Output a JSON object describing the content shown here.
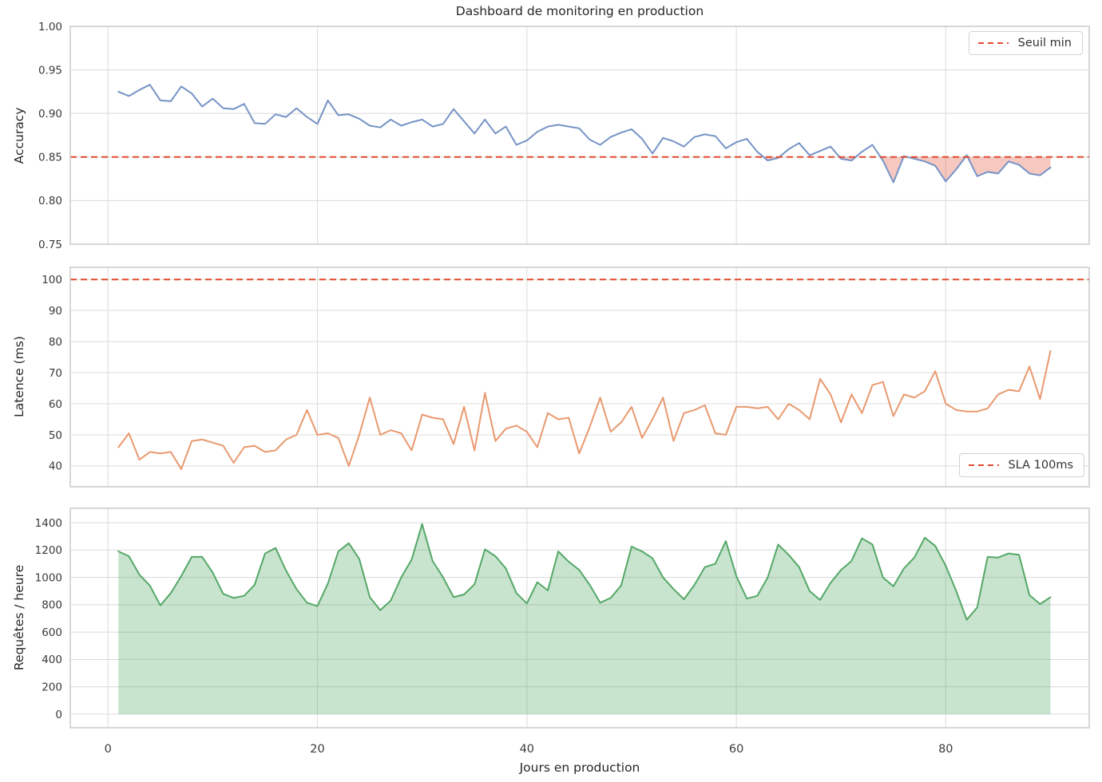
{
  "figure": {
    "title": "Dashboard de monitoring en production",
    "xlabel": "Jours en production",
    "xticks": [
      0,
      20,
      40,
      60,
      80
    ],
    "xtick_labels": [
      "0",
      "20",
      "40",
      "60",
      "80"
    ],
    "xlim": [
      -3.6,
      93.7
    ],
    "colors": {
      "accuracy_line": "#7693c6",
      "latency_line": "#e8996f",
      "requests_line": "#55a868",
      "threshold_red": "#e2492f",
      "grid": "#dddddd",
      "text": "#262626"
    }
  },
  "x_days": [
    1,
    2,
    3,
    4,
    5,
    6,
    7,
    8,
    9,
    10,
    11,
    12,
    13,
    14,
    15,
    16,
    17,
    18,
    19,
    20,
    21,
    22,
    23,
    24,
    25,
    26,
    27,
    28,
    29,
    30,
    31,
    32,
    33,
    34,
    35,
    36,
    37,
    38,
    39,
    40,
    41,
    42,
    43,
    44,
    45,
    46,
    47,
    48,
    49,
    50,
    51,
    52,
    53,
    54,
    55,
    56,
    57,
    58,
    59,
    60,
    61,
    62,
    63,
    64,
    65,
    66,
    67,
    68,
    69,
    70,
    71,
    72,
    73,
    74,
    75,
    76,
    77,
    78,
    79,
    80,
    81,
    82,
    83,
    84,
    85,
    86,
    87,
    88,
    89,
    90
  ],
  "chart_data": [
    {
      "id": "accuracy",
      "type": "line",
      "ylabel": "Accuracy",
      "ylim": [
        0.75,
        1.0
      ],
      "yticks": [
        0.75,
        0.8,
        0.85,
        0.9,
        0.95,
        1.0
      ],
      "ytick_labels": [
        "0.75",
        "0.80",
        "0.85",
        "0.90",
        "0.95",
        "1.00"
      ],
      "grid": true,
      "series": [
        {
          "name": "accuracy",
          "color": "#7693c6",
          "line_width": 2,
          "values": [
            0.925,
            0.92,
            0.927,
            0.933,
            0.915,
            0.914,
            0.931,
            0.923,
            0.908,
            0.917,
            0.906,
            0.905,
            0.911,
            0.889,
            0.888,
            0.899,
            0.896,
            0.906,
            0.896,
            0.888,
            0.915,
            0.898,
            0.899,
            0.894,
            0.886,
            0.884,
            0.893,
            0.886,
            0.89,
            0.893,
            0.885,
            0.888,
            0.905,
            0.891,
            0.877,
            0.893,
            0.877,
            0.885,
            0.864,
            0.869,
            0.879,
            0.885,
            0.887,
            0.885,
            0.883,
            0.87,
            0.864,
            0.873,
            0.878,
            0.882,
            0.871,
            0.854,
            0.872,
            0.868,
            0.862,
            0.873,
            0.876,
            0.874,
            0.86,
            0.867,
            0.871,
            0.856,
            0.846,
            0.849,
            0.859,
            0.866,
            0.852,
            0.857,
            0.862,
            0.848,
            0.846,
            0.856,
            0.864,
            0.846,
            0.821,
            0.851,
            0.848,
            0.845,
            0.84,
            0.822,
            0.836,
            0.852,
            0.828,
            0.833,
            0.831,
            0.845,
            0.841,
            0.831,
            0.829,
            0.838
          ]
        }
      ],
      "threshold": {
        "value": 0.85,
        "color": "#e2492f",
        "style": "dashed",
        "fill_below": true,
        "fill_color": "#e2492f",
        "fill_opacity": 0.3
      },
      "legend": {
        "label": "Seuil min",
        "position": "top-right"
      }
    },
    {
      "id": "latency",
      "type": "line",
      "ylabel": "Latence (ms)",
      "ylim": [
        33.3,
        103.9
      ],
      "yticks": [
        40,
        50,
        60,
        70,
        80,
        90,
        100
      ],
      "ytick_labels": [
        "40",
        "50",
        "60",
        "70",
        "80",
        "90",
        "100"
      ],
      "grid": true,
      "series": [
        {
          "name": "latence",
          "color": "#e8996f",
          "line_width": 2,
          "values": [
            46,
            50.5,
            42,
            44.5,
            44,
            44.5,
            39,
            48,
            48.5,
            47.5,
            46.5,
            41,
            46,
            46.5,
            44.5,
            45,
            48.5,
            50,
            58,
            50,
            50.5,
            49,
            40,
            50,
            62,
            50,
            51.5,
            50.5,
            45,
            56.5,
            55.5,
            55,
            47,
            59,
            45,
            63.5,
            48,
            52,
            53,
            51,
            46,
            57,
            55,
            55.5,
            44,
            52.5,
            62,
            51,
            54,
            59,
            49,
            55,
            62,
            48,
            57,
            58,
            59.5,
            50.5,
            50,
            59,
            59,
            58.5,
            59,
            55,
            60,
            58,
            55,
            68,
            63,
            54,
            63,
            57,
            66,
            67,
            56,
            63,
            62,
            64,
            70.5,
            60,
            58,
            57.5,
            57.5,
            58.5,
            63,
            64.5,
            64,
            72,
            61.5,
            77
          ]
        }
      ],
      "threshold": {
        "value": 100,
        "color": "#e2492f",
        "style": "dashed",
        "fill_below": false
      },
      "legend": {
        "label": "SLA 100ms",
        "position": "bottom-right"
      }
    },
    {
      "id": "requests",
      "type": "area",
      "ylabel": "Requêtes / heure",
      "ylim": [
        -99,
        1505
      ],
      "yticks": [
        0,
        200,
        400,
        600,
        800,
        1000,
        1200,
        1400
      ],
      "ytick_labels": [
        "0",
        "200",
        "400",
        "600",
        "800",
        "1000",
        "1200",
        "1400"
      ],
      "grid": true,
      "fill_baseline": 0,
      "series": [
        {
          "name": "requetes",
          "color": "#55a868",
          "line_width": 2,
          "fill_opacity": 0.32,
          "values": [
            1190,
            1155,
            1020,
            940,
            795,
            885,
            1010,
            1150,
            1150,
            1035,
            880,
            850,
            865,
            945,
            1175,
            1215,
            1050,
            915,
            815,
            790,
            955,
            1190,
            1250,
            1135,
            855,
            760,
            830,
            1000,
            1130,
            1390,
            1120,
            1000,
            855,
            875,
            950,
            1205,
            1155,
            1065,
            885,
            810,
            965,
            905,
            1190,
            1115,
            1055,
            945,
            815,
            850,
            940,
            1225,
            1190,
            1140,
            1000,
            915,
            840,
            945,
            1075,
            1100,
            1265,
            1010,
            845,
            865,
            1000,
            1240,
            1165,
            1075,
            900,
            835,
            960,
            1055,
            1120,
            1285,
            1240,
            1000,
            935,
            1065,
            1145,
            1290,
            1230,
            1085,
            900,
            690,
            780,
            1150,
            1145,
            1175,
            1165,
            870,
            805,
            855
          ]
        }
      ]
    }
  ]
}
